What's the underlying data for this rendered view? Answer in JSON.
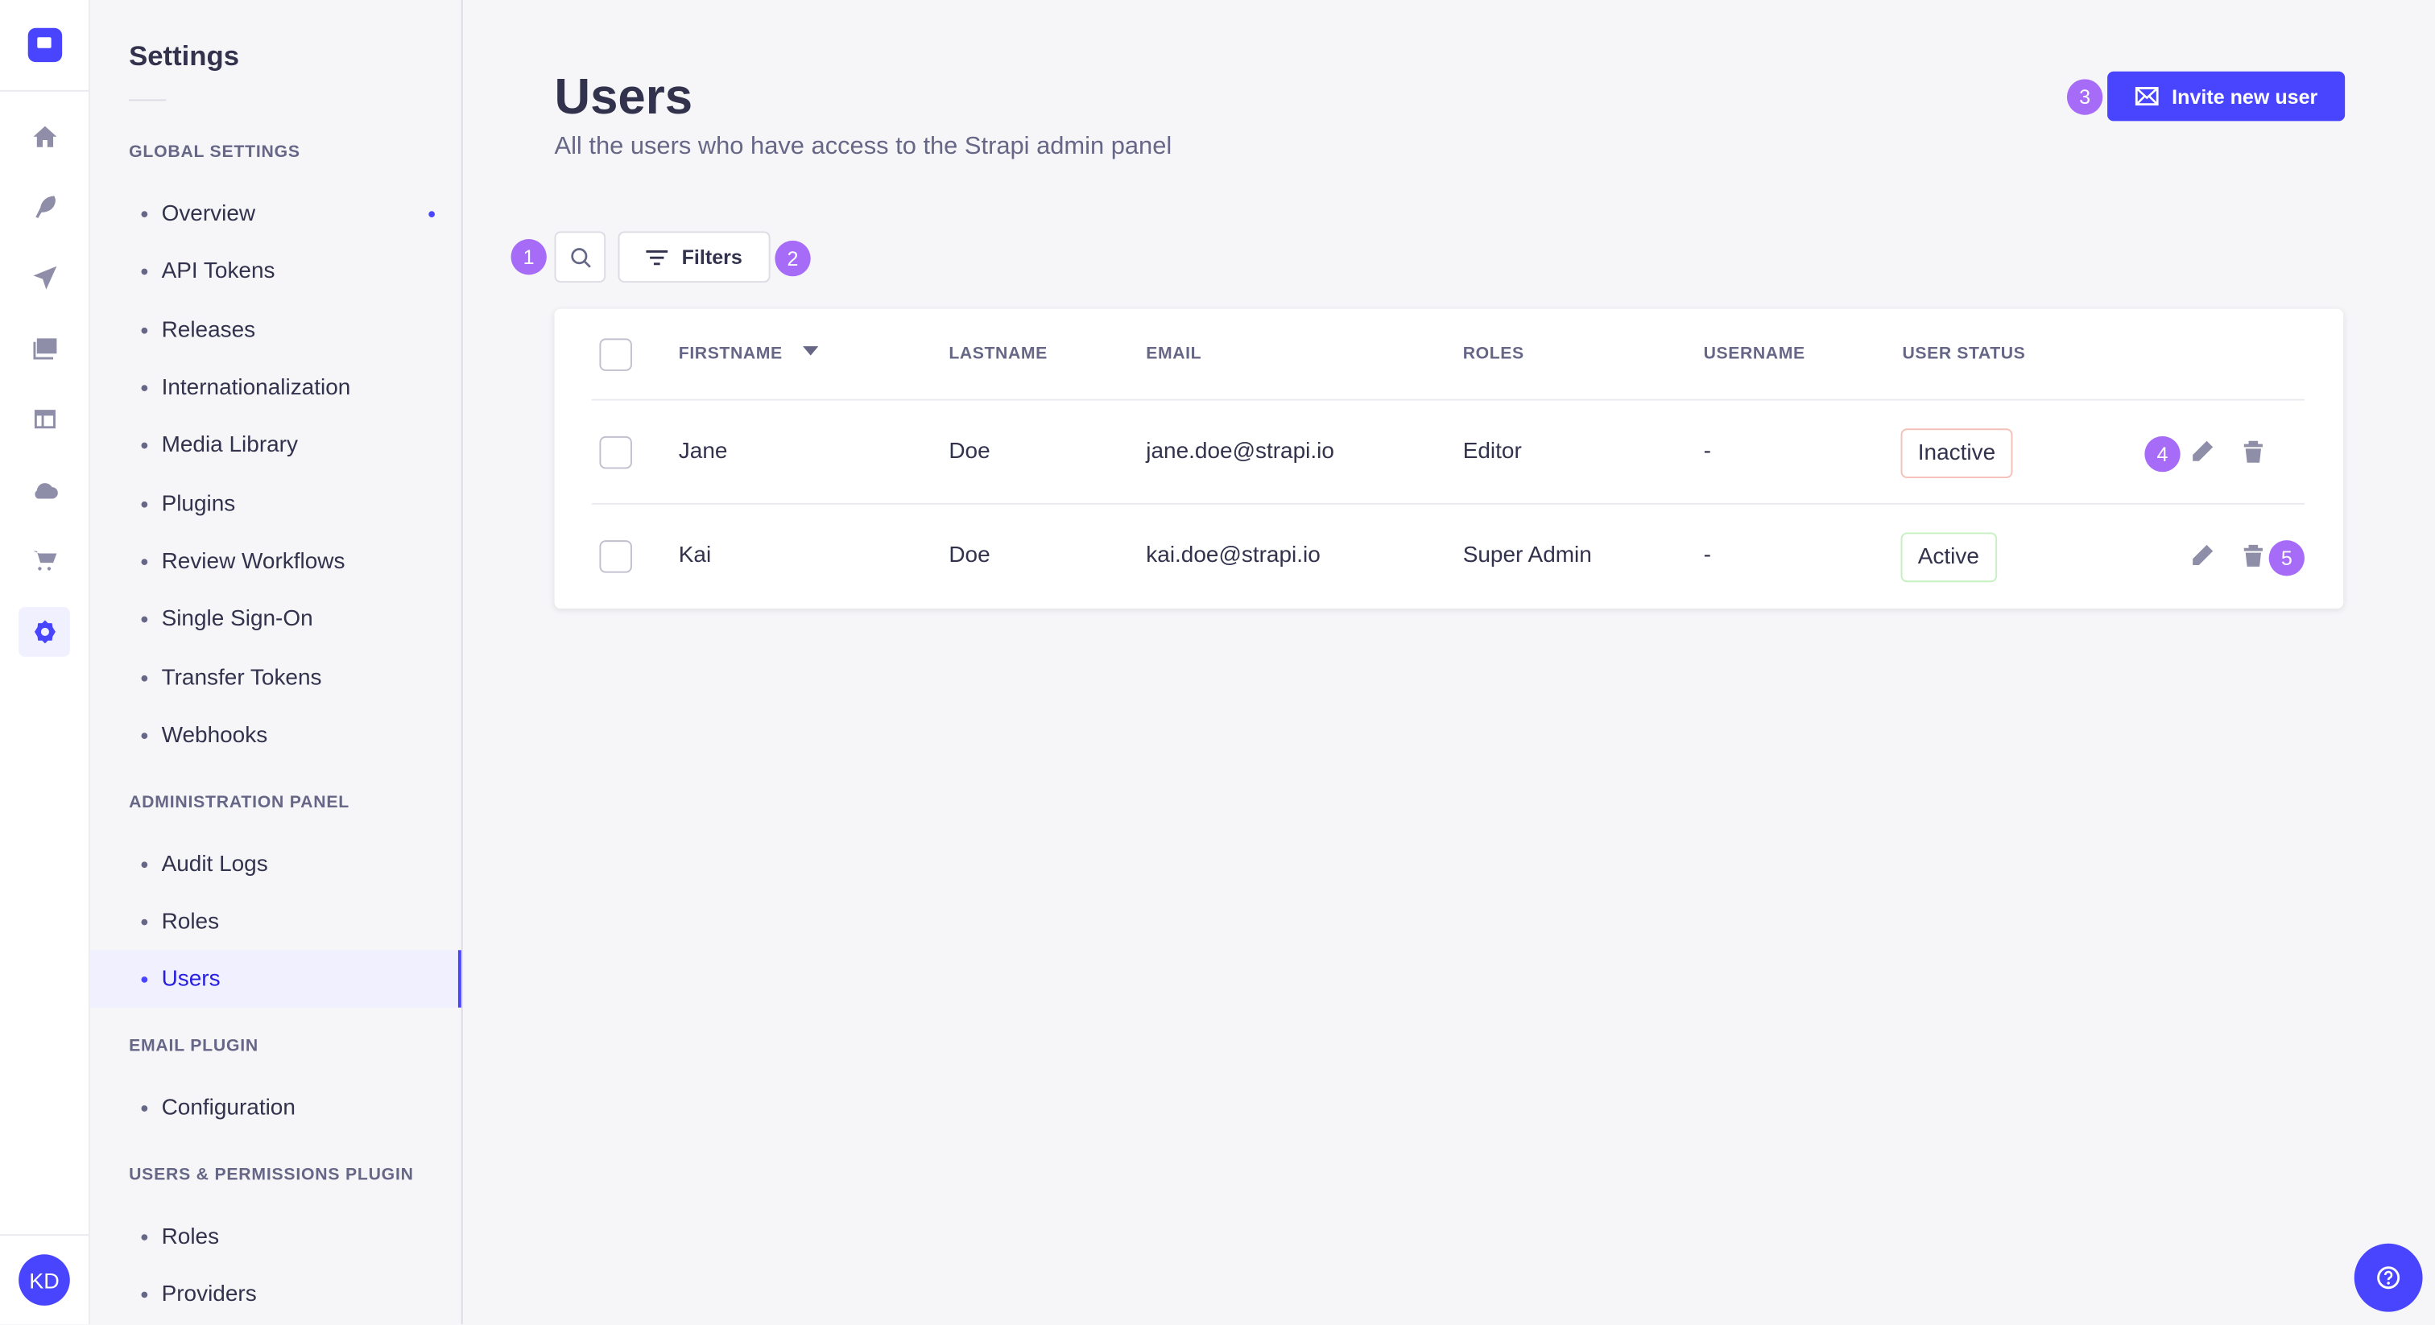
{
  "colors": {
    "primary": "#4945ff",
    "badge": "#a66bf7",
    "inactive_border": "#f5c0b8",
    "active_border": "#c6f0c2"
  },
  "rail": {
    "icons": [
      "home-icon",
      "feather-icon",
      "paper-plane-icon",
      "images-icon",
      "layout-icon",
      "cloud-icon",
      "cart-icon",
      "gear-icon"
    ],
    "avatar": "KD"
  },
  "sidebar": {
    "title": "Settings",
    "sections": [
      {
        "label": "GLOBAL SETTINGS",
        "items": [
          "Overview",
          "API Tokens",
          "Releases",
          "Internationalization",
          "Media Library",
          "Plugins",
          "Review Workflows",
          "Single Sign-On",
          "Transfer Tokens",
          "Webhooks"
        ]
      },
      {
        "label": "ADMINISTRATION PANEL",
        "items": [
          "Audit Logs",
          "Roles",
          "Users"
        ]
      },
      {
        "label": "EMAIL PLUGIN",
        "items": [
          "Configuration"
        ]
      },
      {
        "label": "USERS & PERMISSIONS PLUGIN",
        "items": [
          "Roles",
          "Providers"
        ]
      }
    ],
    "active": "Users"
  },
  "header": {
    "title": "Users",
    "subtitle": "All the users who have access to the Strapi admin panel",
    "invite_label": "Invite new user"
  },
  "toolbar": {
    "filters_label": "Filters"
  },
  "badges": [
    "1",
    "2",
    "3",
    "4",
    "5"
  ],
  "table": {
    "columns": [
      "FIRSTNAME",
      "LASTNAME",
      "EMAIL",
      "ROLES",
      "USERNAME",
      "USER STATUS"
    ],
    "rows": [
      {
        "firstname": "Jane",
        "lastname": "Doe",
        "email": "jane.doe@strapi.io",
        "roles": "Editor",
        "username": "-",
        "status": "Inactive"
      },
      {
        "firstname": "Kai",
        "lastname": "Doe",
        "email": "kai.doe@strapi.io",
        "roles": "Super Admin",
        "username": "-",
        "status": "Active"
      }
    ]
  }
}
